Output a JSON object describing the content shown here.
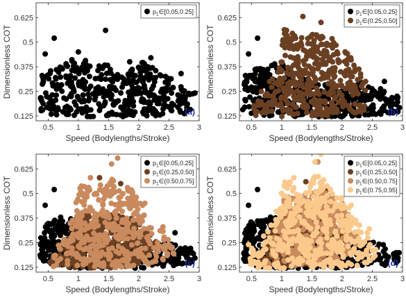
{
  "chart_data": [
    {
      "type": "scatter",
      "panel_label": "(a)",
      "xlabel": "Speed (Bodylengths/Stroke)",
      "ylabel": "Dimensionless COT",
      "xlim": [
        0.3,
        3.0
      ],
      "ylim": [
        0.1,
        0.7
      ],
      "xticks": [
        "0.5",
        "1",
        "1.5",
        "2",
        "2.5",
        "3"
      ],
      "yticks": [
        "0.125",
        "0.25",
        "0.375",
        "0.5",
        "0.625"
      ],
      "grid": false,
      "legend_position": "top-right",
      "legend_labels": [
        "p",
        "∈[0.05,0.25]"
      ],
      "series": [
        {
          "name": "p1∈[0.05,0.25]",
          "legend_sub": "1",
          "color": "#000000",
          "region": [
            [
              0.35,
              0.15
            ],
            [
              0.38,
              0.3
            ],
            [
              0.5,
              0.36
            ],
            [
              0.7,
              0.38
            ],
            [
              0.95,
              0.42
            ],
            [
              1.2,
              0.4
            ],
            [
              1.45,
              0.39
            ],
            [
              1.75,
              0.33
            ],
            [
              2.05,
              0.4
            ],
            [
              2.3,
              0.36
            ],
            [
              2.6,
              0.31
            ],
            [
              2.95,
              0.24
            ],
            [
              2.95,
              0.14
            ],
            [
              2.5,
              0.13
            ],
            [
              2.0,
              0.12
            ],
            [
              1.5,
              0.12
            ],
            [
              1.0,
              0.12
            ],
            [
              0.55,
              0.13
            ]
          ],
          "extras": [
            [
              0.6,
              0.52
            ],
            [
              1.45,
              0.56
            ],
            [
              0.45,
              0.44
            ],
            [
              2.2,
              0.42
            ],
            [
              1.0,
              0.45
            ],
            [
              1.85,
              0.4
            ],
            [
              2.7,
              0.34
            ],
            [
              0.4,
              0.33
            ]
          ]
        }
      ]
    },
    {
      "type": "scatter",
      "panel_label": "(b)",
      "xlabel": "Speed (Bodylengths/Stroke)",
      "ylabel": "Dimensionless COT",
      "xlim": [
        0.3,
        3.0
      ],
      "ylim": [
        0.1,
        0.7
      ],
      "xticks": [
        "0.5",
        "1",
        "1.5",
        "2",
        "2.5",
        "3"
      ],
      "yticks": [
        "0.125",
        "0.25",
        "0.375",
        "0.5",
        "0.625"
      ],
      "grid": false,
      "legend_position": "top-right",
      "legend_labels": [
        "p",
        "∈[0.05,0.25]",
        "∈(0.25,0.50]"
      ],
      "series": [
        {
          "name": "p1∈[0.05,0.25]",
          "legend_sub": "1",
          "color": "#000000",
          "region": [
            [
              0.35,
              0.15
            ],
            [
              0.38,
              0.3
            ],
            [
              0.5,
              0.36
            ],
            [
              0.7,
              0.38
            ],
            [
              0.95,
              0.4
            ],
            [
              1.2,
              0.36
            ],
            [
              1.5,
              0.3
            ],
            [
              1.9,
              0.28
            ],
            [
              2.3,
              0.3
            ],
            [
              2.6,
              0.27
            ],
            [
              2.95,
              0.22
            ],
            [
              2.95,
              0.14
            ],
            [
              2.5,
              0.13
            ],
            [
              2.0,
              0.12
            ],
            [
              1.5,
              0.12
            ],
            [
              1.0,
              0.12
            ],
            [
              0.55,
              0.13
            ]
          ],
          "extras": [
            [
              0.6,
              0.52
            ],
            [
              0.45,
              0.44
            ],
            [
              2.7,
              0.3
            ],
            [
              0.4,
              0.33
            ]
          ]
        },
        {
          "name": "p1∈(0.25,0.50]",
          "legend_sub": "1",
          "color": "#6b4022",
          "region": [
            [
              0.45,
              0.12
            ],
            [
              0.55,
              0.22
            ],
            [
              0.75,
              0.28
            ],
            [
              0.95,
              0.36
            ],
            [
              1.05,
              0.58
            ],
            [
              1.3,
              0.52
            ],
            [
              1.6,
              0.55
            ],
            [
              1.9,
              0.52
            ],
            [
              2.2,
              0.4
            ],
            [
              2.45,
              0.28
            ],
            [
              2.25,
              0.2
            ],
            [
              2.5,
              0.15
            ],
            [
              2.0,
              0.13
            ],
            [
              1.5,
              0.12
            ],
            [
              1.0,
              0.12
            ]
          ],
          "extras": [
            [
              1.35,
              0.63
            ],
            [
              1.65,
              0.6
            ],
            [
              1.1,
              0.5
            ],
            [
              2.05,
              0.45
            ]
          ]
        }
      ]
    },
    {
      "type": "scatter",
      "panel_label": "(c)",
      "xlabel": "Speed (Bodylengths/Stroke)",
      "ylabel": "Dimensionless COT",
      "xlim": [
        0.3,
        3.0
      ],
      "ylim": [
        0.1,
        0.7
      ],
      "xticks": [
        "0.5",
        "1",
        "1.5",
        "2",
        "2.5",
        "3"
      ],
      "yticks": [
        "0.125",
        "0.25",
        "0.375",
        "0.5",
        "0.625"
      ],
      "grid": false,
      "legend_position": "top-right",
      "legend_labels": [
        "p",
        "∈[0.05,0.25]",
        "∈(0.25,0.50]",
        "∈(0.50,0.75]"
      ],
      "series": [
        {
          "name": "p1∈[0.05,0.25]",
          "legend_sub": "1",
          "color": "#000000",
          "region": [
            [
              0.35,
              0.15
            ],
            [
              0.38,
              0.3
            ],
            [
              0.5,
              0.36
            ],
            [
              0.7,
              0.38
            ],
            [
              0.95,
              0.38
            ],
            [
              1.0,
              0.3
            ],
            [
              1.5,
              0.24
            ],
            [
              2.0,
              0.24
            ],
            [
              2.4,
              0.26
            ],
            [
              2.7,
              0.24
            ],
            [
              2.95,
              0.22
            ],
            [
              2.95,
              0.14
            ],
            [
              2.5,
              0.13
            ],
            [
              2.0,
              0.12
            ],
            [
              1.5,
              0.12
            ],
            [
              1.0,
              0.12
            ],
            [
              0.55,
              0.13
            ]
          ],
          "extras": [
            [
              0.6,
              0.52
            ],
            [
              0.45,
              0.44
            ],
            [
              2.6,
              0.3
            ]
          ]
        },
        {
          "name": "p1∈(0.25,0.50]",
          "legend_sub": "1",
          "color": "#6b4022",
          "region": [
            [
              0.5,
              0.13
            ],
            [
              0.65,
              0.22
            ],
            [
              0.9,
              0.3
            ],
            [
              1.05,
              0.4
            ],
            [
              1.3,
              0.38
            ],
            [
              1.6,
              0.4
            ],
            [
              2.0,
              0.36
            ],
            [
              2.3,
              0.25
            ],
            [
              2.0,
              0.14
            ],
            [
              1.5,
              0.12
            ],
            [
              1.0,
              0.12
            ]
          ],
          "extras": [
            [
              1.35,
              0.58
            ],
            [
              1.7,
              0.55
            ]
          ]
        },
        {
          "name": "p1∈(0.50,0.75]",
          "legend_sub": "1",
          "color": "#c98a5e",
          "region": [
            [
              0.55,
              0.12
            ],
            [
              0.6,
              0.22
            ],
            [
              0.8,
              0.28
            ],
            [
              0.95,
              0.46
            ],
            [
              1.05,
              0.56
            ],
            [
              1.3,
              0.52
            ],
            [
              1.55,
              0.62
            ],
            [
              1.75,
              0.55
            ],
            [
              1.95,
              0.5
            ],
            [
              2.25,
              0.36
            ],
            [
              2.5,
              0.28
            ],
            [
              2.6,
              0.18
            ],
            [
              2.3,
              0.13
            ],
            [
              1.8,
              0.12
            ],
            [
              1.2,
              0.12
            ]
          ],
          "extras": [
            [
              1.65,
              0.68
            ],
            [
              1.55,
              0.65
            ],
            [
              1.2,
              0.58
            ],
            [
              2.1,
              0.45
            ],
            [
              2.4,
              0.33
            ]
          ]
        }
      ]
    },
    {
      "type": "scatter",
      "panel_label": "(d)",
      "xlabel": "Speed (Bodylengths/Stroke)",
      "ylabel": "Dimensionless COT",
      "xlim": [
        0.3,
        3.0
      ],
      "ylim": [
        0.1,
        0.7
      ],
      "xticks": [
        "0.5",
        "1",
        "1.5",
        "2",
        "2.5",
        "3"
      ],
      "yticks": [
        "0.125",
        "0.25",
        "0.375",
        "0.5",
        "0.625"
      ],
      "grid": false,
      "legend_position": "top-right",
      "legend_labels": [
        "p",
        "∈[0.05,0.25]",
        "∈(0.25,0.50]",
        "∈(0.50,0.75]",
        "∈(0.75,0.95]"
      ],
      "series": [
        {
          "name": "p1∈[0.05,0.25]",
          "legend_sub": "1",
          "color": "#000000",
          "region": [
            [
              0.35,
              0.15
            ],
            [
              0.38,
              0.3
            ],
            [
              0.5,
              0.36
            ],
            [
              0.7,
              0.38
            ],
            [
              0.95,
              0.38
            ],
            [
              1.0,
              0.3
            ],
            [
              1.5,
              0.24
            ],
            [
              2.0,
              0.24
            ],
            [
              2.4,
              0.26
            ],
            [
              2.7,
              0.24
            ],
            [
              2.95,
              0.22
            ],
            [
              2.95,
              0.14
            ],
            [
              2.5,
              0.13
            ],
            [
              2.0,
              0.12
            ],
            [
              1.5,
              0.12
            ],
            [
              1.0,
              0.12
            ],
            [
              0.55,
              0.13
            ]
          ],
          "extras": [
            [
              0.6,
              0.52
            ],
            [
              0.45,
              0.44
            ]
          ]
        },
        {
          "name": "p1∈(0.25,0.50]",
          "legend_sub": "1",
          "color": "#6b4022",
          "region": [
            [
              0.6,
              0.14
            ],
            [
              0.8,
              0.28
            ],
            [
              1.0,
              0.4
            ],
            [
              1.4,
              0.4
            ],
            [
              1.8,
              0.36
            ],
            [
              2.1,
              0.28
            ],
            [
              1.8,
              0.16
            ],
            [
              1.2,
              0.13
            ]
          ],
          "extras": [
            [
              1.4,
              0.56
            ],
            [
              1.75,
              0.52
            ]
          ]
        },
        {
          "name": "p1∈(0.50,0.75]",
          "legend_sub": "1",
          "color": "#c98a5e",
          "region": [
            [
              0.7,
              0.14
            ],
            [
              0.9,
              0.3
            ],
            [
              1.05,
              0.48
            ],
            [
              1.4,
              0.5
            ],
            [
              1.75,
              0.52
            ],
            [
              2.1,
              0.4
            ],
            [
              2.3,
              0.26
            ],
            [
              2.0,
              0.14
            ],
            [
              1.4,
              0.13
            ]
          ],
          "extras": [
            [
              1.6,
              0.66
            ],
            [
              2.0,
              0.45
            ]
          ]
        },
        {
          "name": "p1∈(0.75,0.95]",
          "legend_sub": "1",
          "color": "#fcc98c",
          "region": [
            [
              0.45,
              0.12
            ],
            [
              0.5,
              0.22
            ],
            [
              0.75,
              0.3
            ],
            [
              0.95,
              0.46
            ],
            [
              1.05,
              0.58
            ],
            [
              1.3,
              0.52
            ],
            [
              1.55,
              0.6
            ],
            [
              1.75,
              0.56
            ],
            [
              2.0,
              0.48
            ],
            [
              2.3,
              0.34
            ],
            [
              2.55,
              0.26
            ],
            [
              2.6,
              0.16
            ],
            [
              2.2,
              0.13
            ],
            [
              1.6,
              0.12
            ],
            [
              1.0,
              0.12
            ]
          ],
          "extras": [
            [
              1.65,
              0.7
            ],
            [
              1.55,
              0.66
            ],
            [
              1.2,
              0.58
            ],
            [
              2.15,
              0.44
            ],
            [
              2.45,
              0.32
            ],
            [
              0.45,
              0.24
            ]
          ]
        }
      ]
    }
  ]
}
